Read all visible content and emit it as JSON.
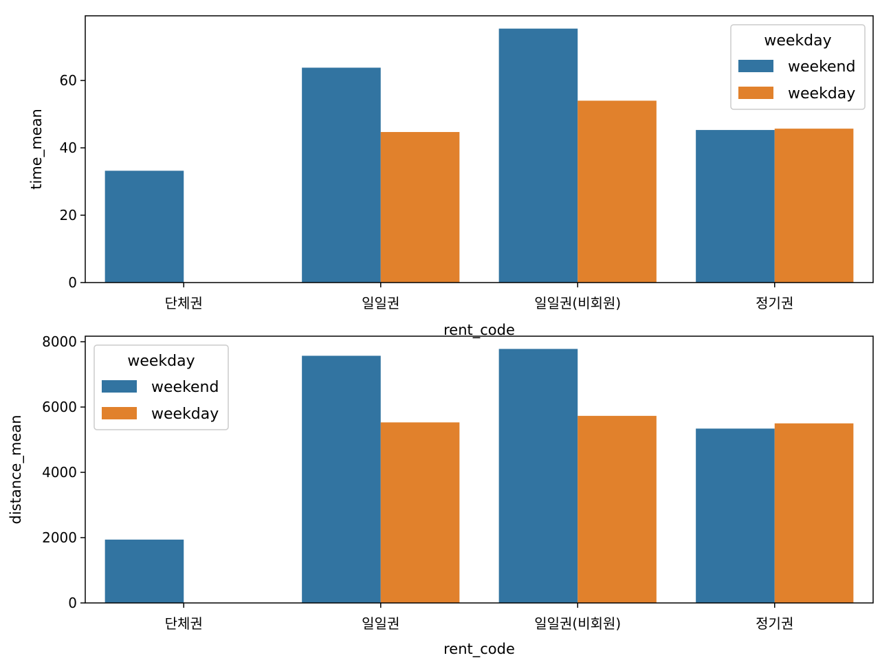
{
  "chart_data": [
    {
      "type": "bar",
      "title": "",
      "xlabel": "rent_code",
      "ylabel": "time_mean",
      "categories": [
        "단체권",
        "일일권",
        "일일권(비회원)",
        "정기권"
      ],
      "series": [
        {
          "name": "weekend",
          "color": "#3274a1",
          "values": [
            33.2,
            63.8,
            75.4,
            45.3
          ]
        },
        {
          "name": "weekday",
          "color": "#e1812c",
          "values": [
            0,
            44.7,
            54.0,
            45.7
          ]
        }
      ],
      "ylim": [
        0,
        79.2
      ],
      "yticks": [
        0,
        20,
        40,
        60
      ],
      "ytick_labels": [
        "0",
        "20",
        "40",
        "60"
      ],
      "legend": {
        "title": "weekday",
        "placement": "top-right"
      }
    },
    {
      "type": "bar",
      "title": "",
      "xlabel": "rent_code",
      "ylabel": "distance_mean",
      "categories": [
        "단체권",
        "일일권",
        "일일권(비회원)",
        "정기권"
      ],
      "series": [
        {
          "name": "weekend",
          "color": "#3274a1",
          "values": [
            1940,
            7570,
            7780,
            5340
          ]
        },
        {
          "name": "weekday",
          "color": "#e1812c",
          "values": [
            0,
            5530,
            5730,
            5500
          ]
        }
      ],
      "ylim": [
        0,
        8170
      ],
      "yticks": [
        0,
        2000,
        4000,
        6000,
        8000
      ],
      "ytick_labels": [
        "0",
        "2000",
        "4000",
        "6000",
        "8000"
      ],
      "legend": {
        "title": "weekday",
        "placement": "top-left"
      }
    }
  ]
}
